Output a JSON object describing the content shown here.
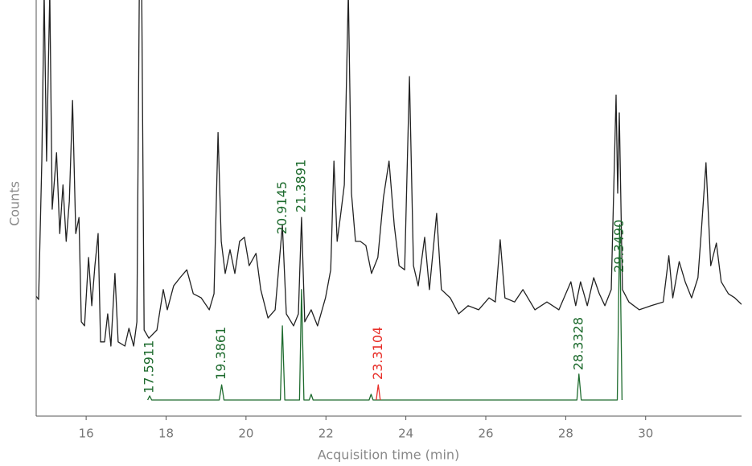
{
  "chart_data": {
    "type": "line",
    "xlabel": "Acquisition time (min)",
    "ylabel": "Counts",
    "xlim": [
      14.75,
      32.4
    ],
    "xticks": [
      16,
      18,
      20,
      22,
      24,
      26,
      28,
      30
    ],
    "ylim": [
      0,
      100
    ],
    "series": [
      {
        "color": "#222222",
        "x": [
          14.75,
          14.81,
          14.89,
          14.95,
          15.01,
          15.09,
          15.15,
          15.26,
          15.34,
          15.42,
          15.5,
          15.58,
          15.66,
          15.74,
          15.82,
          15.88,
          15.96,
          16.06,
          16.14,
          16.22,
          16.3,
          16.36,
          16.46,
          16.54,
          16.62,
          16.72,
          16.8,
          16.97,
          17.07,
          17.19,
          17.27,
          17.33,
          17.39,
          17.45,
          17.57,
          17.77,
          17.93,
          18.03,
          18.19,
          18.35,
          18.52,
          18.68,
          18.88,
          19.08,
          19.2,
          19.3,
          19.38,
          19.48,
          19.6,
          19.72,
          19.84,
          19.96,
          20.08,
          20.25,
          20.37,
          20.55,
          20.73,
          20.91,
          21.01,
          21.19,
          21.31,
          21.39,
          21.47,
          21.63,
          21.79,
          21.99,
          22.12,
          22.2,
          22.28,
          22.36,
          22.46,
          22.56,
          22.64,
          22.74,
          22.86,
          23.0,
          23.14,
          23.3,
          23.44,
          23.58,
          23.71,
          23.83,
          23.97,
          24.09,
          24.19,
          24.31,
          24.47,
          24.59,
          24.77,
          24.89,
          25.11,
          25.32,
          25.56,
          25.82,
          26.08,
          26.24,
          26.36,
          26.48,
          26.72,
          26.93,
          27.23,
          27.53,
          27.83,
          28.13,
          28.25,
          28.37,
          28.54,
          28.7,
          28.84,
          28.98,
          29.14,
          29.26,
          29.3,
          29.34,
          29.42,
          29.58,
          29.84,
          30.14,
          30.44,
          30.58,
          30.68,
          30.84,
          30.99,
          31.15,
          31.31,
          31.39,
          31.51,
          31.63,
          31.77,
          31.89,
          32.07,
          32.23,
          32.4
        ],
        "values": [
          29.1,
          28.3,
          61.9,
          103,
          61.9,
          103,
          50.2,
          63.9,
          44.3,
          56.1,
          42.4,
          52.1,
          76.6,
          44.3,
          48.2,
          22.9,
          21.9,
          38.5,
          26.8,
          36.5,
          44.3,
          18.0,
          18.0,
          24.8,
          17.0,
          34.6,
          18.0,
          17.0,
          21.3,
          17.0,
          22.9,
          103,
          103,
          20.9,
          18.9,
          20.9,
          30.7,
          25.8,
          31.6,
          33.6,
          35.5,
          29.7,
          28.7,
          25.8,
          29.7,
          68.8,
          42.4,
          34.6,
          40.4,
          34.6,
          42.4,
          43.4,
          36.5,
          39.5,
          30.7,
          23.8,
          25.8,
          46.3,
          24.8,
          21.9,
          24.8,
          48.2,
          22.9,
          25.8,
          21.9,
          28.7,
          35.5,
          61.9,
          42.4,
          48.2,
          56.1,
          103,
          54.1,
          42.4,
          42.4,
          41.4,
          34.6,
          38.5,
          53.1,
          61.9,
          46.3,
          36.5,
          35.5,
          82.4,
          36.5,
          31.6,
          43.4,
          30.7,
          49.2,
          30.7,
          28.7,
          24.8,
          26.8,
          25.8,
          28.7,
          27.7,
          42.8,
          28.7,
          27.7,
          30.7,
          25.8,
          27.7,
          25.8,
          32.6,
          26.8,
          32.6,
          26.8,
          33.6,
          29.7,
          26.8,
          30.7,
          77.9,
          54.1,
          73.6,
          30.7,
          27.7,
          25.8,
          26.8,
          27.7,
          38.9,
          28.7,
          37.5,
          32.6,
          28.7,
          33.6,
          44.3,
          61.5,
          36.5,
          42.0,
          32.6,
          29.7,
          28.7,
          27.1
        ]
      },
      {
        "color": "#1e6b2e",
        "x": [
          17.54,
          17.59,
          17.64,
          19.33,
          19.39,
          19.45,
          20.86,
          20.91,
          20.97,
          21.34,
          21.39,
          21.45,
          21.58,
          21.63,
          21.68,
          23.08,
          23.13,
          23.18,
          28.28,
          28.33,
          28.39,
          29.29,
          29.35,
          29.41
        ],
        "values": [
          3.9,
          4.9,
          3.9,
          3.9,
          7.6,
          3.9,
          3.9,
          21.9,
          3.9,
          3.9,
          30.7,
          3.9,
          3.9,
          5.3,
          3.9,
          3.9,
          5.3,
          3.9,
          3.9,
          10.2,
          3.9,
          3.9,
          46.5,
          3.9
        ]
      },
      {
        "color": "#e8302a",
        "x": [
          23.26,
          23.31,
          23.36
        ],
        "values": [
          3.9,
          7.6,
          3.9
        ]
      }
    ],
    "annotations": [
      {
        "text": "17.5911",
        "x": 17.5911,
        "y": 5.5,
        "color": "#1e6b2e"
      },
      {
        "text": "19.3861",
        "x": 19.3861,
        "y": 8.8,
        "color": "#1e6b2e"
      },
      {
        "text": "20.9145",
        "x": 20.9145,
        "y": 44.1,
        "color": "#1e6b2e"
      },
      {
        "text": "21.3891",
        "x": 21.3891,
        "y": 49.4,
        "color": "#1e6b2e"
      },
      {
        "text": "23.3104",
        "x": 23.3104,
        "y": 8.8,
        "color": "#e8302a"
      },
      {
        "text": "28.3328",
        "x": 28.3328,
        "y": 11.1,
        "color": "#1e6b2e"
      },
      {
        "text": "29.3490",
        "x": 29.349,
        "y": 34.8,
        "color": "#1e6b2e"
      }
    ]
  }
}
